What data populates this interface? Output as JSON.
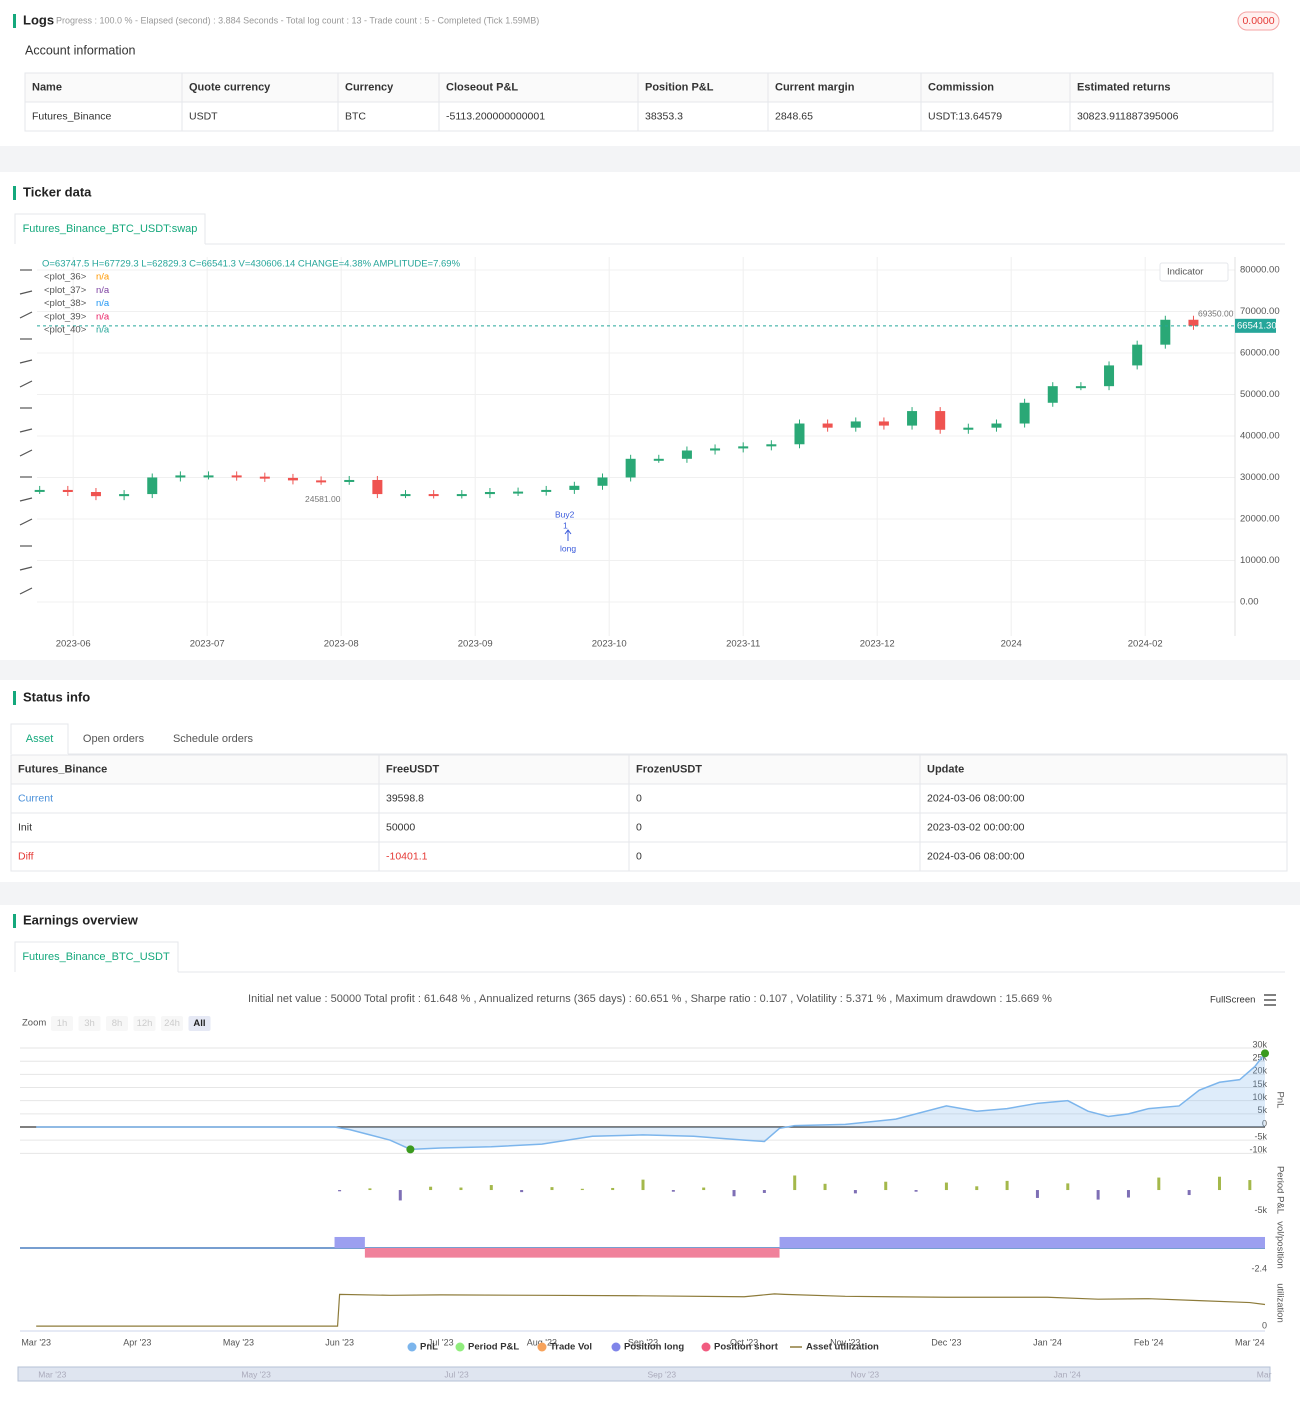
{
  "logs": {
    "title": "Logs",
    "progress": "Progress : 100.0 % - Elapsed (second) : 3.884 Seconds - Total log count : 13 - Trade count : 5 - Completed (Tick 1.59MB)",
    "badge": "0.0000"
  },
  "account": {
    "title": "Account information",
    "columns": [
      "Name",
      "Quote currency",
      "Currency",
      "Closeout P&L",
      "Position P&L",
      "Current margin",
      "Commission",
      "Estimated returns"
    ],
    "rows": [
      [
        "Futures_Binance",
        "USDT",
        "BTC",
        "-5113.200000000001",
        "38353.3",
        "2848.65",
        "USDT:13.64579",
        "30823.911887395006"
      ]
    ]
  },
  "ticker": {
    "title": "Ticker data",
    "tab": "Futures_Binance_BTC_USDT:swap",
    "ohlc": "O=63747.5 H=67729.3 L=62829.3 C=66541.3 V=430606.14 CHANGE=4.38% AMPLITUDE=7.69%",
    "indicator": "Indicator",
    "plots": [
      {
        "name": "<plot_36>",
        "value": "n/a",
        "color": "#ff9800"
      },
      {
        "name": "<plot_37>",
        "value": "n/a",
        "color": "#7b3fa0"
      },
      {
        "name": "<plot_38>",
        "value": "n/a",
        "color": "#2196f3"
      },
      {
        "name": "<plot_39>",
        "value": "n/a",
        "color": "#e91e63"
      },
      {
        "name": "<plot_40>",
        "value": "n/a",
        "color": "#26a69a"
      }
    ],
    "signals": [
      "Buy2",
      "1",
      "long"
    ]
  },
  "status": {
    "title": "Status info",
    "tabs": [
      "Asset",
      "Open orders",
      "Schedule orders"
    ],
    "columns": [
      "Futures_Binance",
      "FreeUSDT",
      "FrozenUSDT",
      "Update"
    ],
    "rows": [
      [
        "Current",
        "39598.8",
        "0",
        "2024-03-06 08:00:00"
      ],
      [
        "Init",
        "50000",
        "0",
        "2023-03-02 00:00:00"
      ],
      [
        "Diff",
        "-10401.1",
        "0",
        "2024-03-06 08:00:00"
      ]
    ]
  },
  "earnings": {
    "title": "Earnings overview",
    "tab": "Futures_Binance_BTC_USDT",
    "stats": "Initial net value : 50000 Total profit : 61.648 % , Annualized returns (365 days) : 60.651 % , Sharpe ratio : 0.107 , Volatility : 5.371 % , Maximum drawdown : 15.669 %",
    "fullscreen": "FullScreen",
    "zoom": {
      "label": "Zoom",
      "buttons": [
        "1h",
        "3h",
        "8h",
        "12h",
        "24h",
        "All"
      ]
    },
    "legend": [
      {
        "name": "PnL",
        "color": "#7cb5ec"
      },
      {
        "name": "Period P&L",
        "color": "#90ed7d"
      },
      {
        "name": "Trade Vol",
        "color": "#f7a35c"
      },
      {
        "name": "Position long",
        "color": "#8085e9"
      },
      {
        "name": "Position short",
        "color": "#f15c80"
      },
      {
        "name": "Asset utilization",
        "color": "#8d7b3a"
      }
    ]
  },
  "chart_data": [
    {
      "type": "candlestick",
      "x": [
        -0.25,
        -0.04,
        0.17,
        0.38,
        0.59,
        0.8,
        1.01,
        1.22,
        1.43,
        1.64,
        1.85,
        2.06,
        2.27,
        2.48,
        2.69,
        2.9,
        3.11,
        3.32,
        3.53,
        3.74,
        3.95,
        4.16,
        4.37,
        4.58,
        4.79,
        5.0,
        5.21,
        5.42,
        5.63,
        5.84,
        6.05,
        6.26,
        6.47,
        6.68,
        6.89,
        7.1,
        7.31,
        7.52,
        7.73,
        7.94,
        8.15,
        8.36
      ],
      "values": [
        27000,
        26500,
        25500,
        26000,
        30000,
        30500,
        30500,
        30200,
        29900,
        29300,
        29200,
        29400,
        26000,
        26000,
        25900,
        26000,
        26500,
        26600,
        27000,
        28000,
        30000,
        34500,
        34500,
        36500,
        37000,
        37500,
        38000,
        43000,
        42000,
        43500,
        42500,
        46000,
        41500,
        42000,
        43000,
        48000,
        52000,
        52000,
        57000,
        62000,
        68000,
        66541.3
      ],
      "color_up": "#2aa876",
      "color_down": "#ef5350",
      "grid": true,
      "xlim": [
        -0.27,
        8.67
      ],
      "xticks": [
        {
          "value": 0,
          "label": "2023-06"
        },
        {
          "value": 1,
          "label": "2023-07"
        },
        {
          "value": 2,
          "label": "2023-08"
        },
        {
          "value": 3,
          "label": "2023-09"
        },
        {
          "value": 4,
          "label": "2023-10"
        },
        {
          "value": 5,
          "label": "2023-11"
        },
        {
          "value": 6,
          "label": "2023-12"
        },
        {
          "value": 7,
          "label": "2024"
        },
        {
          "value": 8,
          "label": "2024-02"
        }
      ],
      "ylim": [
        -8000,
        83000
      ],
      "yticks": [
        {
          "value": 0,
          "label": "0.00"
        },
        {
          "value": 10000,
          "label": "10000.00"
        },
        {
          "value": 20000,
          "label": "20000.00"
        },
        {
          "value": 30000,
          "label": "30000.00"
        },
        {
          "value": 40000,
          "label": "40000.00"
        },
        {
          "value": 50000,
          "label": "50000.00"
        },
        {
          "value": 60000,
          "label": "60000.00"
        },
        {
          "value": 70000,
          "label": "70000.00"
        },
        {
          "value": 80000,
          "label": "80000.00"
        }
      ],
      "last_price": {
        "value": 66541.3,
        "label": "66541.30"
      },
      "high_label": {
        "value": 69350,
        "label": "69350.00"
      },
      "low_label": {
        "value": 24581,
        "label": "24581.00"
      }
    },
    {
      "type": "area",
      "y_label": "PnL",
      "color": "#7cb5ec",
      "x": [
        0,
        1,
        2,
        2.95,
        3.1,
        3.3,
        3.5,
        3.7,
        4,
        4.5,
        5,
        5.5,
        6,
        6.5,
        7,
        7.2,
        7.35,
        7.5,
        8,
        8.5,
        9,
        9.3,
        9.6,
        9.9,
        10.2,
        10.4,
        10.6,
        10.8,
        11,
        11.3,
        11.5,
        11.7,
        11.9,
        12.05,
        12.15
      ],
      "values": [
        0,
        0,
        0,
        0,
        -1000,
        -3000,
        -5000,
        -8500,
        -8000,
        -7500,
        -6500,
        -3500,
        -3000,
        -3500,
        -5000,
        -5500,
        -500,
        500,
        1000,
        3000,
        8000,
        6000,
        7000,
        9000,
        10000,
        6000,
        4000,
        5000,
        7000,
        8000,
        14000,
        17000,
        18000,
        23000,
        28000
      ],
      "xlim": [
        -0.16,
        12.15
      ],
      "xticks": [
        {
          "value": 0,
          "label": "Mar '23"
        },
        {
          "value": 1,
          "label": "Apr '23"
        },
        {
          "value": 2,
          "label": "May '23"
        },
        {
          "value": 3,
          "label": "Jun '23"
        },
        {
          "value": 4,
          "label": "Jul '23"
        },
        {
          "value": 5,
          "label": "Aug '23"
        },
        {
          "value": 6,
          "label": "Sep '23"
        },
        {
          "value": 7,
          "label": "Oct '23"
        },
        {
          "value": 8,
          "label": "Nov '23"
        },
        {
          "value": 9,
          "label": "Dec '23"
        },
        {
          "value": 10,
          "label": "Jan '24"
        },
        {
          "value": 11,
          "label": "Feb '24"
        },
        {
          "value": 12,
          "label": "Mar '24"
        }
      ],
      "navigator_ticks": [
        {
          "value": 0,
          "label": "Mar '23"
        },
        {
          "value": 2,
          "label": "May '23"
        },
        {
          "value": 4,
          "label": "Jul '23"
        },
        {
          "value": 6,
          "label": "Sep '23"
        },
        {
          "value": 8,
          "label": "Nov '23"
        },
        {
          "value": 10,
          "label": "Jan '24"
        },
        {
          "value": 12,
          "label": "Mar"
        }
      ],
      "ylim": [
        -11400,
        32300
      ],
      "yticks": [
        {
          "value": 30000,
          "label": "30k"
        },
        {
          "value": 25000,
          "label": "25k"
        },
        {
          "value": 20000,
          "label": "20k"
        },
        {
          "value": 15000,
          "label": "15k"
        },
        {
          "value": 10000,
          "label": "10k"
        },
        {
          "value": 5000,
          "label": "5k"
        },
        0,
        {
          "value": -5000,
          "label": "-5k"
        },
        {
          "value": -10000,
          "label": "-10k"
        }
      ]
    },
    {
      "type": "bar",
      "y_label": "Period P&L",
      "color_up": "#a4b84b",
      "color_down": "#7e6fb5",
      "x": [
        3,
        3.3,
        3.6,
        3.9,
        4.2,
        4.5,
        4.8,
        5.1,
        5.4,
        5.7,
        6,
        6.3,
        6.6,
        6.9,
        7.2,
        7.5,
        7.8,
        8.1,
        8.4,
        8.7,
        9,
        9.3,
        9.6,
        9.9,
        10.2,
        10.5,
        10.8,
        11.1,
        11.4,
        11.7,
        12
      ],
      "values": [
        -300,
        400,
        -2500,
        800,
        600,
        1200,
        -500,
        700,
        300,
        500,
        2500,
        -400,
        600,
        -1500,
        -700,
        3500,
        1500,
        -800,
        2000,
        -400,
        1800,
        900,
        2200,
        -1900,
        1600,
        -2300,
        -1800,
        3000,
        -1200,
        3200,
        2400
      ],
      "xlim": [
        -0.16,
        12.15
      ],
      "ylim": [
        -6000,
        6500
      ],
      "yticks": [
        {
          "value": -5000,
          "label": "-5k"
        }
      ]
    },
    {
      "type": "range-bar",
      "y_label": "vol/position",
      "series": [
        {
          "color": "#9c9ff0",
          "start": [
            2.95,
            7.35
          ],
          "end": [
            3.25,
            12.15
          ],
          "values": [
            1.26,
            1.26
          ]
        },
        {
          "color": "#f0819b",
          "start": [
            3.25
          ],
          "end": [
            7.35
          ],
          "values": [
            -1.1
          ]
        }
      ],
      "xlim": [
        -0.16,
        12.15
      ],
      "ylim": [
        -2.4,
        2.4
      ],
      "yticks": [
        -2.4
      ]
    },
    {
      "type": "line",
      "y_label": "utilization",
      "color": "#8d7b3a",
      "x": [
        0,
        2.98,
        3.0,
        3.5,
        4,
        5,
        6,
        7,
        7.3,
        7.4,
        8,
        9,
        10,
        10.5,
        11,
        11.5,
        12,
        12.15
      ],
      "values": [
        0,
        0,
        0.66,
        0.64,
        0.65,
        0.64,
        0.63,
        0.61,
        0.67,
        0.66,
        0.62,
        0.6,
        0.6,
        0.56,
        0.57,
        0.53,
        0.49,
        0.45
      ],
      "xlim": [
        -0.16,
        12.15
      ],
      "ylim": [
        -0.08,
        1
      ],
      "yticks": [
        0
      ]
    }
  ]
}
